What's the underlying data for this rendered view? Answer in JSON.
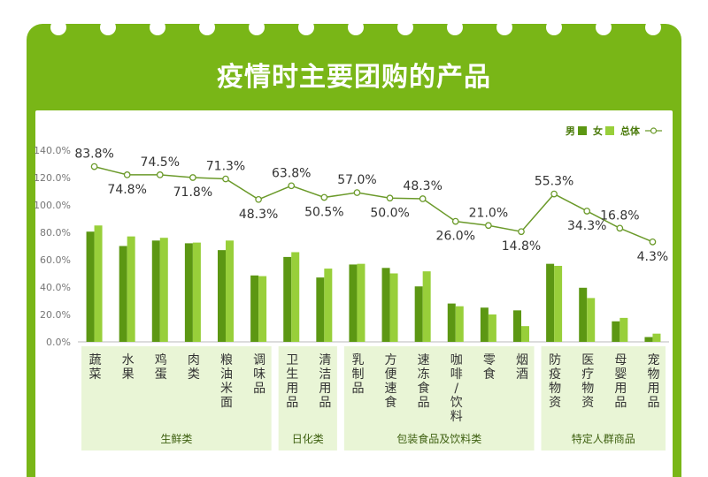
{
  "title": "疫情时主要团购的产品",
  "colors": {
    "frame": "#79b617",
    "male": "#5c9713",
    "female": "#98cf3a",
    "line": "#6b9a2a",
    "band": "#e9f5d6",
    "axis_text": "#777777"
  },
  "legend": {
    "male": "男",
    "female": "女",
    "total": "总体"
  },
  "chart_data": {
    "type": "bar",
    "title": "疫情时主要团购的产品",
    "categories": [
      "蔬菜",
      "水果",
      "鸡蛋",
      "肉类",
      "粮油米面",
      "调味品",
      "卫生用品",
      "清洁用品",
      "乳制品",
      "方便速食",
      "速冻食品",
      "咖啡/饮料",
      "零食",
      "烟酒",
      "防疫物资",
      "医疗物资",
      "母婴用品",
      "宠物用品"
    ],
    "series": [
      {
        "name": "男",
        "type": "bar",
        "values": [
          80.5,
          70.0,
          74.0,
          72.0,
          67.0,
          48.5,
          62.0,
          47.0,
          56.5,
          54.0,
          40.5,
          28.0,
          25.0,
          23.0,
          57.0,
          39.5,
          15.0,
          3.5
        ]
      },
      {
        "name": "女",
        "type": "bar",
        "values": [
          85.0,
          77.0,
          76.0,
          72.5,
          74.0,
          48.0,
          65.5,
          53.5,
          57.0,
          50.0,
          51.5,
          26.0,
          20.0,
          11.5,
          55.5,
          32.0,
          17.5,
          6.0
        ]
      },
      {
        "name": "总体",
        "type": "line",
        "values": [
          128.0,
          122.0,
          122.0,
          120.0,
          119.0,
          104.0,
          114.0,
          105.5,
          109.0,
          105.0,
          104.5,
          88.0,
          85.0,
          80.5,
          108.0,
          95.5,
          83.0,
          73.0
        ],
        "labels": [
          "83.8%",
          "74.8%",
          "74.5%",
          "71.8%",
          "71.3%",
          "48.3%",
          "63.8%",
          "50.5%",
          "57.0%",
          "50.0%",
          "48.3%",
          "26.0%",
          "21.0%",
          "14.8%",
          "55.3%",
          "34.3%",
          "16.8%",
          "4.3%"
        ],
        "label_side": [
          "up",
          "down",
          "up",
          "down",
          "up",
          "down",
          "up",
          "down",
          "up",
          "down",
          "up",
          "down",
          "up",
          "down",
          "up",
          "down",
          "up",
          "down"
        ]
      }
    ],
    "yticks": [
      "0.0%",
      "20.0%",
      "40.0%",
      "60.0%",
      "80.0%",
      "100.0%",
      "120.0%",
      "140.0%"
    ],
    "ylim": [
      0,
      140
    ],
    "groups": [
      {
        "name": "生鲜类",
        "from": 0,
        "to": 5
      },
      {
        "name": "日化类",
        "from": 6,
        "to": 7
      },
      {
        "name": "包装食品及饮料类",
        "from": 8,
        "to": 13
      },
      {
        "name": "特定人群商品",
        "from": 14,
        "to": 17
      }
    ]
  }
}
